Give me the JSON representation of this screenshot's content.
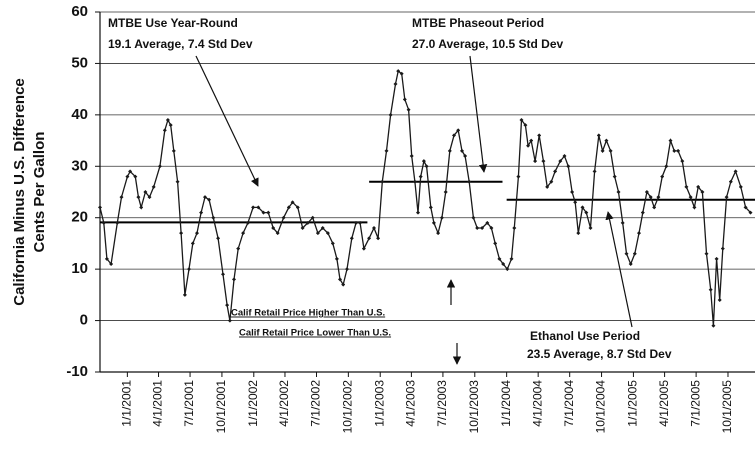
{
  "chart_data": {
    "type": "line",
    "ylabel": [
      "California Minus U.S. Difference",
      "Cents Per Gallon"
    ],
    "x": [
      "2000-10-14",
      "2000-10-25",
      "2000-11-03",
      "2000-11-15",
      "2000-12-03",
      "2000-12-15",
      "2001-01-01",
      "2001-01-09",
      "2001-01-24",
      "2001-02-02",
      "2001-02-10",
      "2001-02-22",
      "2001-03-06",
      "2001-03-18",
      "2001-04-05",
      "2001-04-19",
      "2001-04-28",
      "2001-05-06",
      "2001-05-15",
      "2001-05-26",
      "2001-06-05",
      "2001-06-16",
      "2001-06-28",
      "2001-07-09",
      "2001-07-21",
      "2001-08-02",
      "2001-08-13",
      "2001-08-25",
      "2001-09-06",
      "2001-09-20",
      "2001-10-04",
      "2001-10-16",
      "2001-10-24",
      "2001-11-05",
      "2001-11-17",
      "2001-12-01",
      "2001-12-15",
      "2001-12-30",
      "2002-01-14",
      "2002-01-29",
      "2002-02-12",
      "2002-02-26",
      "2002-03-11",
      "2002-03-28",
      "2002-04-12",
      "2002-04-23",
      "2002-05-08",
      "2002-05-22",
      "2002-06-06",
      "2002-06-20",
      "2002-07-05",
      "2002-07-19",
      "2002-08-03",
      "2002-08-17",
      "2002-08-29",
      "2002-09-07",
      "2002-09-16",
      "2002-09-27",
      "2002-10-11",
      "2002-10-23",
      "2002-11-04",
      "2002-11-15",
      "2002-11-30",
      "2002-12-14",
      "2002-12-26",
      "2003-01-07",
      "2003-01-19",
      "2003-01-31",
      "2003-02-14",
      "2003-02-22",
      "2003-03-04",
      "2003-03-13",
      "2003-03-24",
      "2003-04-02",
      "2003-04-11",
      "2003-04-20",
      "2003-04-28",
      "2003-05-07",
      "2003-05-15",
      "2003-05-27",
      "2003-06-05",
      "2003-06-17",
      "2003-06-28",
      "2003-07-09",
      "2003-07-21",
      "2003-08-02",
      "2003-08-14",
      "2003-08-25",
      "2003-09-03",
      "2003-09-15",
      "2003-09-27",
      "2003-10-08",
      "2003-10-22",
      "2003-11-06",
      "2003-11-18",
      "2003-11-29",
      "2003-12-11",
      "2003-12-22",
      "2004-01-03",
      "2004-01-15",
      "2004-01-23",
      "2004-02-04",
      "2004-02-13",
      "2004-02-24",
      "2004-03-03",
      "2004-03-12",
      "2004-03-23",
      "2004-04-04",
      "2004-04-16",
      "2004-04-27",
      "2004-05-09",
      "2004-05-20",
      "2004-06-04",
      "2004-06-16",
      "2004-06-27",
      "2004-07-08",
      "2004-07-17",
      "2004-07-26",
      "2004-08-07",
      "2004-08-18",
      "2004-08-30",
      "2004-09-11",
      "2004-09-23",
      "2004-10-04",
      "2004-10-15",
      "2004-10-27",
      "2004-11-08",
      "2004-11-19",
      "2004-12-01",
      "2004-12-12",
      "2004-12-24",
      "2005-01-05",
      "2005-01-17",
      "2005-01-28",
      "2005-02-09",
      "2005-02-20",
      "2005-03-02",
      "2005-03-14",
      "2005-03-25",
      "2005-04-06",
      "2005-04-18",
      "2005-04-29",
      "2005-05-10",
      "2005-05-22",
      "2005-06-03",
      "2005-06-15",
      "2005-06-26",
      "2005-07-07",
      "2005-07-19",
      "2005-07-31",
      "2005-08-12",
      "2005-08-20",
      "2005-08-29",
      "2005-09-07",
      "2005-09-16",
      "2005-09-27",
      "2005-10-09",
      "2005-10-23",
      "2005-11-07",
      "2005-11-21",
      "2005-12-05"
    ],
    "values": [
      22,
      19,
      12,
      11,
      19,
      24,
      28,
      29,
      28,
      24,
      22,
      25,
      24,
      26,
      30,
      37,
      39,
      38,
      33,
      27,
      17,
      5,
      10,
      15,
      17,
      21,
      24,
      23.5,
      20,
      16,
      9,
      3,
      0,
      8,
      14,
      17,
      19,
      22,
      22,
      21,
      21,
      18,
      17,
      20,
      22,
      23,
      22,
      18,
      19,
      20,
      17,
      18,
      17,
      15,
      12,
      8,
      7,
      10,
      16,
      19,
      19,
      14,
      16,
      18,
      16,
      27,
      33,
      40,
      46,
      48.5,
      48,
      43,
      41,
      32,
      27,
      21,
      28,
      31,
      30,
      22,
      19,
      17,
      20,
      25,
      33,
      36,
      37,
      33,
      32,
      27,
      20,
      18,
      18,
      19,
      18,
      15,
      12,
      11,
      10,
      12,
      18,
      28,
      39,
      38,
      34,
      35,
      31,
      36,
      31,
      26,
      27,
      29,
      31,
      32,
      30,
      25,
      23,
      17,
      22,
      21,
      18,
      29,
      36,
      33,
      35,
      33,
      28,
      25,
      19,
      13,
      11,
      13,
      17,
      21,
      25,
      24,
      22,
      24,
      28,
      30,
      35,
      33,
      33,
      31,
      26,
      24,
      22,
      26,
      25,
      13,
      6,
      -1,
      12,
      4,
      14,
      24,
      27,
      29,
      26,
      22,
      21
    ],
    "color": "#1a1a1a",
    "xlim": [
      "2000-10-14",
      "2005-12-18"
    ],
    "xticks": [
      {
        "value": "2001-01-01",
        "label": "1/1/2001"
      },
      {
        "value": "2001-04-01",
        "label": "4/1/2001"
      },
      {
        "value": "2001-07-01",
        "label": "7/1/2001"
      },
      {
        "value": "2001-10-01",
        "label": "10/1/2001"
      },
      {
        "value": "2002-01-01",
        "label": "1/1/2002"
      },
      {
        "value": "2002-04-01",
        "label": "4/1/2002"
      },
      {
        "value": "2002-07-01",
        "label": "7/1/2002"
      },
      {
        "value": "2002-10-01",
        "label": "10/1/2002"
      },
      {
        "value": "2003-01-01",
        "label": "1/1/2003"
      },
      {
        "value": "2003-04-01",
        "label": "4/1/2003"
      },
      {
        "value": "2003-07-01",
        "label": "7/1/2003"
      },
      {
        "value": "2003-10-01",
        "label": "10/1/2003"
      },
      {
        "value": "2004-01-01",
        "label": "1/1/2004"
      },
      {
        "value": "2004-04-01",
        "label": "4/1/2004"
      },
      {
        "value": "2004-07-01",
        "label": "7/1/2004"
      },
      {
        "value": "2004-10-01",
        "label": "10/1/2004"
      },
      {
        "value": "2005-01-01",
        "label": "1/1/2005"
      },
      {
        "value": "2005-04-01",
        "label": "4/1/2005"
      },
      {
        "value": "2005-07-01",
        "label": "7/1/2005"
      },
      {
        "value": "2005-10-01",
        "label": "10/1/2005"
      }
    ],
    "ylim": [
      -10,
      60
    ],
    "yticks": [
      -10,
      0,
      10,
      20,
      30,
      40,
      50,
      60
    ],
    "grid": true,
    "average_lines": [
      {
        "start": "2000-10-14",
        "end": "2002-11-25",
        "value": 19.1
      },
      {
        "start": "2002-11-30",
        "end": "2003-12-20",
        "value": 27.0
      },
      {
        "start": "2004-01-01",
        "end": "2005-12-18",
        "value": 23.5
      }
    ],
    "annotations": [
      {
        "lines": [
          "MTBE Use Year-Round",
          "19.1 Average, 7.4 Std Dev"
        ]
      },
      {
        "lines": [
          "MTBE Phaseout Period",
          "27.0 Average, 10.5 Std Dev"
        ]
      },
      {
        "lines": [
          "Calif Retail Price Higher Than U.S.",
          "Calif Retail Price Lower Than U.S."
        ]
      },
      {
        "lines": [
          "Ethanol Use Period",
          "23.5 Average, 8.7 Std Dev"
        ]
      }
    ]
  }
}
